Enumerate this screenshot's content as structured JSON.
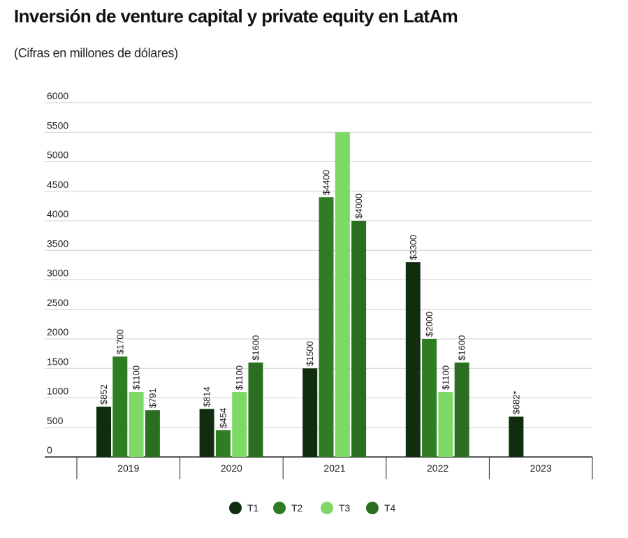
{
  "title": "Inversión de venture capital y private equity en LatAm",
  "subtitle": "(Cifras en millones de dólares)",
  "chart_data": {
    "type": "bar",
    "title": "Inversión de venture capital y private equity en LatAm",
    "subtitle": "(Cifras en millones de dólares)",
    "xlabel": "",
    "ylabel": "",
    "ylim": [
      0,
      6000
    ],
    "yticks": [
      0,
      500,
      1000,
      1500,
      2000,
      2500,
      3000,
      3500,
      4000,
      4500,
      5000,
      5500,
      6000
    ],
    "grid": true,
    "legend_position": "bottom-center",
    "categories": [
      "2019",
      "2020",
      "2021",
      "2022",
      "2023"
    ],
    "series": [
      {
        "name": "T1",
        "color": "#112d10",
        "values": [
          852,
          814,
          1500,
          3300,
          682
        ],
        "labels": [
          "$852",
          "$814",
          "$1500",
          "$3300",
          "$682*"
        ]
      },
      {
        "name": "T2",
        "color": "#2e7d23",
        "values": [
          1700,
          454,
          4400,
          2000,
          null
        ],
        "labels": [
          "$1700",
          "$454",
          "$4400",
          "$2000",
          ""
        ]
      },
      {
        "name": "T3",
        "color": "#7ed866",
        "values": [
          1100,
          1100,
          5500,
          1100,
          null
        ],
        "labels": [
          "$1100",
          "$1100",
          "",
          "$1100",
          ""
        ]
      },
      {
        "name": "T4",
        "color": "#2b6e22",
        "values": [
          791,
          1600,
          4000,
          1600,
          null
        ],
        "labels": [
          "$791",
          "$1600",
          "$4000",
          "$1600",
          ""
        ]
      }
    ]
  }
}
